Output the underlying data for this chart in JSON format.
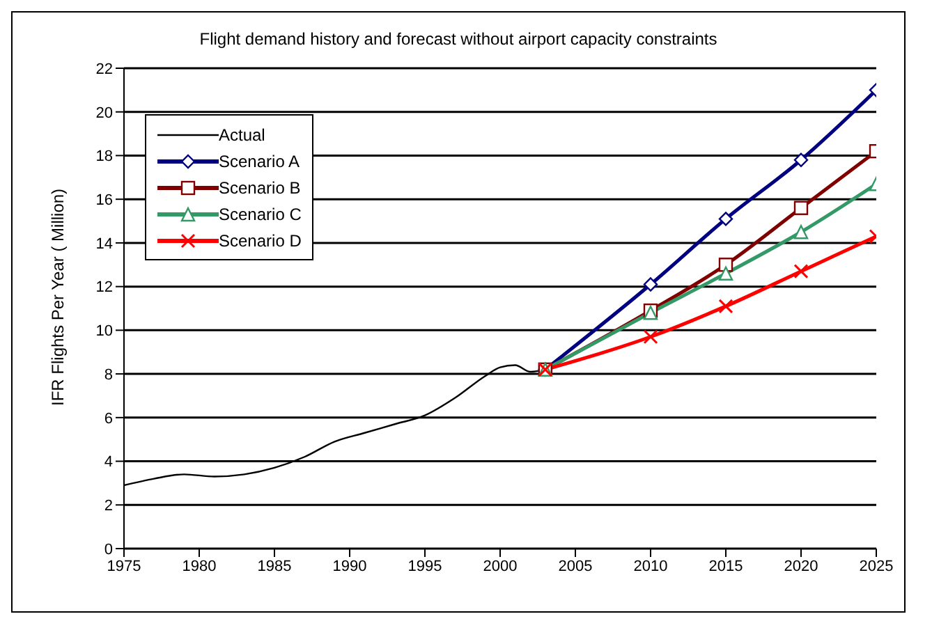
{
  "chart_data": {
    "type": "line",
    "title": "Flight demand history and forecast without airport capacity constraints",
    "ylabel": "IFR Flights Per Year ( Million)",
    "xlim": [
      1975,
      2025
    ],
    "xticks": [
      1975,
      1980,
      1985,
      1990,
      1995,
      2000,
      2005,
      2010,
      2015,
      2020,
      2025
    ],
    "ylim": [
      0,
      22
    ],
    "yticks": [
      0,
      2,
      4,
      6,
      8,
      10,
      12,
      14,
      16,
      18,
      20,
      22
    ],
    "grid": "y",
    "legend": "top left",
    "line_style": "solid",
    "series": [
      {
        "name": "Actual",
        "color": "#000000",
        "marker": "none",
        "x": [
          1975,
          1977,
          1979,
          1981,
          1983,
          1985,
          1987,
          1989,
          1991,
          1993,
          1995,
          1997,
          1999,
          2000,
          2001,
          2002,
          2003
        ],
        "values": [
          2.9,
          3.2,
          3.4,
          3.3,
          3.4,
          3.7,
          4.2,
          4.9,
          5.3,
          5.7,
          6.1,
          6.9,
          7.9,
          8.3,
          8.4,
          8.1,
          8.2
        ]
      },
      {
        "name": "Scenario A",
        "color": "#000080",
        "marker": "diamond",
        "x": [
          2003,
          2010,
          2015,
          2020,
          2025
        ],
        "values": [
          8.2,
          12.1,
          15.1,
          17.8,
          21.0
        ]
      },
      {
        "name": "Scenario B",
        "color": "#800000",
        "marker": "square",
        "x": [
          2003,
          2010,
          2015,
          2020,
          2025
        ],
        "values": [
          8.2,
          10.9,
          13.0,
          15.6,
          18.2
        ]
      },
      {
        "name": "Scenario C",
        "color": "#339966",
        "marker": "triangle",
        "x": [
          2003,
          2010,
          2015,
          2020,
          2025
        ],
        "values": [
          8.2,
          10.8,
          12.6,
          14.5,
          16.7
        ]
      },
      {
        "name": "Scenario D",
        "color": "#ff0000",
        "marker": "cross",
        "x": [
          2003,
          2010,
          2015,
          2020,
          2025
        ],
        "values": [
          8.2,
          9.7,
          11.1,
          12.7,
          14.3
        ]
      }
    ]
  }
}
